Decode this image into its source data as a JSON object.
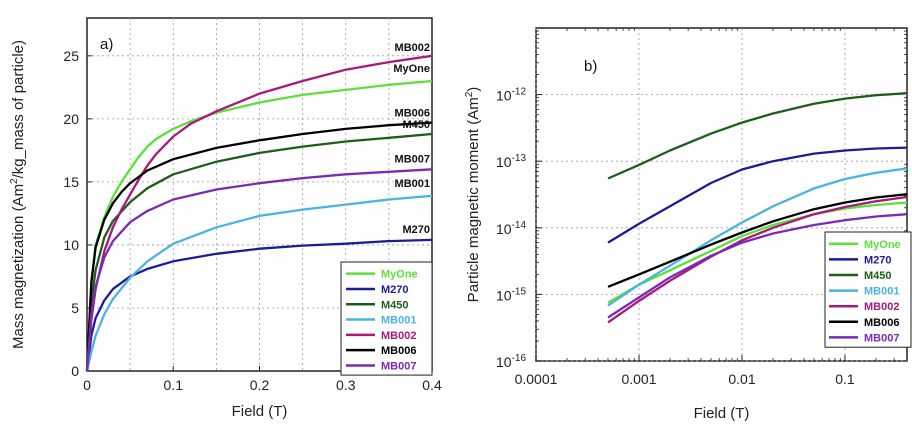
{
  "chart_data": [
    {
      "type": "line",
      "panel_label": "a)",
      "xlabel": "Field (T)",
      "ylabel_parts": [
        "Mass magnetization (Am",
        "2",
        "/kg_mass of particle)"
      ],
      "xlim": [
        0,
        0.4
      ],
      "ylim": [
        0,
        28
      ],
      "x_ticks": [
        0,
        0.1,
        0.2,
        0.3,
        0.4
      ],
      "x_tick_labels": [
        "0",
        "0.1",
        "0.2",
        "0.3",
        "0.4"
      ],
      "x_grid": [
        0.05,
        0.1,
        0.15,
        0.2,
        0.25,
        0.3,
        0.35
      ],
      "y_ticks": [
        0,
        5,
        10,
        15,
        20,
        25
      ],
      "y_tick_labels": [
        "0",
        "5",
        "10",
        "15",
        "20",
        "25"
      ],
      "grid": true,
      "legend_position": "bottom-right",
      "series": [
        {
          "name": "MyOne",
          "color": "#5ce03a",
          "annotation": "MyOne",
          "x": [
            0,
            0.005,
            0.01,
            0.02,
            0.03,
            0.04,
            0.05,
            0.06,
            0.07,
            0.08,
            0.1,
            0.12,
            0.15,
            0.2,
            0.25,
            0.3,
            0.35,
            0.4
          ],
          "y": [
            0,
            7,
            10,
            12.2,
            13.8,
            15,
            16,
            17,
            17.8,
            18.4,
            19.2,
            19.8,
            20.5,
            21.3,
            21.9,
            22.3,
            22.7,
            23
          ]
        },
        {
          "name": "M270",
          "color": "#1c1c9a",
          "annotation": "M270",
          "x": [
            0,
            0.005,
            0.01,
            0.02,
            0.03,
            0.05,
            0.07,
            0.1,
            0.15,
            0.2,
            0.25,
            0.3,
            0.35,
            0.4
          ],
          "y": [
            0,
            2.8,
            4.2,
            5.6,
            6.5,
            7.5,
            8.1,
            8.7,
            9.3,
            9.7,
            9.95,
            10.1,
            10.3,
            10.4
          ]
        },
        {
          "name": "M450",
          "color": "#1f5e1a",
          "annotation": "M450",
          "x": [
            0,
            0.005,
            0.01,
            0.02,
            0.03,
            0.05,
            0.07,
            0.1,
            0.15,
            0.2,
            0.25,
            0.3,
            0.35,
            0.4
          ],
          "y": [
            0,
            5.5,
            8,
            10.6,
            11.9,
            13.4,
            14.5,
            15.6,
            16.6,
            17.3,
            17.8,
            18.2,
            18.5,
            18.8
          ]
        },
        {
          "name": "MB001",
          "color": "#4ab4e0",
          "annotation": "MB001",
          "x": [
            0,
            0.005,
            0.01,
            0.02,
            0.03,
            0.05,
            0.07,
            0.1,
            0.15,
            0.2,
            0.25,
            0.3,
            0.35,
            0.4
          ],
          "y": [
            0,
            1.5,
            2.8,
            4.5,
            5.7,
            7.4,
            8.7,
            10.1,
            11.4,
            12.3,
            12.8,
            13.2,
            13.6,
            13.9
          ]
        },
        {
          "name": "MB002",
          "color": "#a8197e",
          "annotation": "MB002",
          "x": [
            0,
            0.005,
            0.01,
            0.02,
            0.03,
            0.04,
            0.05,
            0.06,
            0.07,
            0.08,
            0.1,
            0.12,
            0.15,
            0.2,
            0.25,
            0.3,
            0.35,
            0.4
          ],
          "y": [
            0,
            4,
            6.5,
            9.5,
            11.4,
            12.8,
            14,
            15.2,
            16.3,
            17.2,
            18.6,
            19.6,
            20.6,
            22,
            23,
            23.9,
            24.5,
            25
          ]
        },
        {
          "name": "MB006",
          "color": "#000000",
          "annotation": "MB006",
          "x": [
            0,
            0.005,
            0.01,
            0.02,
            0.03,
            0.04,
            0.05,
            0.07,
            0.1,
            0.15,
            0.2,
            0.25,
            0.3,
            0.35,
            0.4
          ],
          "y": [
            0,
            7,
            9.8,
            12,
            13.3,
            14.2,
            14.9,
            15.9,
            16.8,
            17.7,
            18.3,
            18.8,
            19.2,
            19.5,
            19.7
          ]
        },
        {
          "name": "MB007",
          "color": "#7a2bb5",
          "annotation": "MB007",
          "x": [
            0,
            0.005,
            0.01,
            0.02,
            0.03,
            0.05,
            0.07,
            0.1,
            0.15,
            0.2,
            0.25,
            0.3,
            0.35,
            0.4
          ],
          "y": [
            0,
            4.5,
            6.7,
            9,
            10.3,
            11.8,
            12.7,
            13.6,
            14.4,
            14.9,
            15.3,
            15.6,
            15.8,
            16
          ]
        }
      ]
    },
    {
      "type": "line",
      "panel_label": "b)",
      "xlabel": "Field (T)",
      "ylabel_parts": [
        "Particle magnetic moment (Am",
        "2",
        ")"
      ],
      "x_log": true,
      "y_log": true,
      "xlim": [
        0.0001,
        0.4
      ],
      "ylim": [
        1e-16,
        1e-11
      ],
      "x_ticks": [
        0.0001,
        0.001,
        0.01,
        0.1
      ],
      "x_tick_labels": [
        "0.0001",
        "0.001",
        "0.01",
        "0.1"
      ],
      "y_ticks": [
        1e-16,
        1e-15,
        1e-14,
        1e-13,
        1e-12
      ],
      "y_tick_labels": [
        [
          "10",
          "-16"
        ],
        [
          "10",
          "-15"
        ],
        [
          "10",
          "-14"
        ],
        [
          "10",
          "-13"
        ],
        [
          "10",
          "-12"
        ]
      ],
      "grid": true,
      "legend_position": "bottom-right",
      "series": [
        {
          "name": "MyOne",
          "color": "#5ce03a",
          "x": [
            0.0005,
            0.001,
            0.002,
            0.005,
            0.01,
            0.02,
            0.05,
            0.1,
            0.2,
            0.4
          ],
          "y": [
            7.5e-16,
            1.4e-15,
            2.3e-15,
            4.5e-15,
            7.5e-15,
            1.1e-14,
            1.6e-14,
            1.95e-14,
            2.2e-14,
            2.4e-14
          ]
        },
        {
          "name": "M270",
          "color": "#1c1c9a",
          "x": [
            0.0005,
            0.001,
            0.002,
            0.005,
            0.01,
            0.02,
            0.05,
            0.1,
            0.2,
            0.4
          ],
          "y": [
            6e-15,
            1.15e-14,
            2.1e-14,
            4.7e-14,
            7.5e-14,
            1e-13,
            1.3e-13,
            1.45e-13,
            1.55e-13,
            1.6e-13
          ]
        },
        {
          "name": "M450",
          "color": "#1f5e1a",
          "x": [
            0.0005,
            0.001,
            0.002,
            0.005,
            0.01,
            0.02,
            0.05,
            0.1,
            0.2,
            0.4
          ],
          "y": [
            5.5e-14,
            8.8e-14,
            1.45e-13,
            2.6e-13,
            3.8e-13,
            5.2e-13,
            7.3e-13,
            8.7e-13,
            9.8e-13,
            1.05e-12
          ]
        },
        {
          "name": "MB001",
          "color": "#4ab4e0",
          "x": [
            0.0005,
            0.001,
            0.002,
            0.005,
            0.01,
            0.02,
            0.05,
            0.1,
            0.2,
            0.4
          ],
          "y": [
            6.8e-16,
            1.4e-15,
            2.7e-15,
            6.5e-15,
            1.2e-14,
            2.1e-14,
            3.9e-14,
            5.4e-14,
            6.7e-14,
            7.8e-14
          ]
        },
        {
          "name": "MB002",
          "color": "#a8197e",
          "x": [
            0.0005,
            0.001,
            0.002,
            0.005,
            0.01,
            0.02,
            0.05,
            0.1,
            0.2,
            0.4
          ],
          "y": [
            3.8e-16,
            8e-16,
            1.6e-15,
            3.7e-15,
            6.5e-15,
            1e-14,
            1.6e-14,
            2.05e-14,
            2.5e-14,
            2.9e-14
          ]
        },
        {
          "name": "MB006",
          "color": "#000000",
          "x": [
            0.0005,
            0.001,
            0.002,
            0.005,
            0.01,
            0.02,
            0.05,
            0.1,
            0.2,
            0.4
          ],
          "y": [
            1.3e-15,
            2e-15,
            3.1e-15,
            5.6e-15,
            8.5e-15,
            1.25e-14,
            1.9e-14,
            2.4e-14,
            2.85e-14,
            3.2e-14
          ]
        },
        {
          "name": "MB007",
          "color": "#7a2bb5",
          "x": [
            0.0005,
            0.001,
            0.002,
            0.005,
            0.01,
            0.02,
            0.05,
            0.1,
            0.2,
            0.4
          ],
          "y": [
            4.5e-16,
            9e-16,
            1.8e-15,
            3.8e-15,
            6e-15,
            8.2e-15,
            1.1e-14,
            1.3e-14,
            1.48e-14,
            1.6e-14
          ]
        }
      ]
    }
  ]
}
